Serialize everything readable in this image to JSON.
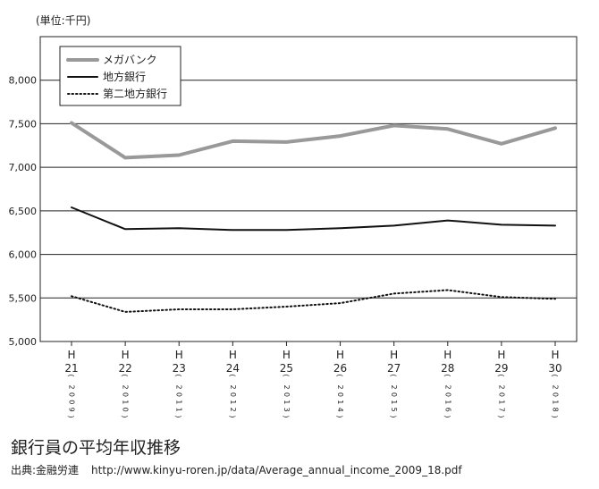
{
  "unit_label": "(単位:千円)",
  "title": "銀行員の平均年収推移",
  "source": {
    "label": "出典:金融労連",
    "url": "http://www.kinyu-roren.jp/data/Average_annual_income_2009_18.pdf"
  },
  "colors": {
    "megabank": "#999999",
    "regional": "#111111",
    "second_regional": "#111111",
    "grid": "#222222"
  },
  "chart_data": {
    "type": "line",
    "categories": [
      {
        "era": "H",
        "era_year": "21",
        "year": "2009"
      },
      {
        "era": "H",
        "era_year": "22",
        "year": "2010"
      },
      {
        "era": "H",
        "era_year": "23",
        "year": "2011"
      },
      {
        "era": "H",
        "era_year": "24",
        "year": "2012"
      },
      {
        "era": "H",
        "era_year": "25",
        "year": "2013"
      },
      {
        "era": "H",
        "era_year": "26",
        "year": "2014"
      },
      {
        "era": "H",
        "era_year": "27",
        "year": "2015"
      },
      {
        "era": "H",
        "era_year": "28",
        "year": "2016"
      },
      {
        "era": "H",
        "era_year": "29",
        "year": "2017"
      },
      {
        "era": "H",
        "era_year": "30",
        "year": "2018"
      }
    ],
    "series": [
      {
        "name": "メガバンク",
        "style": "solid-thick",
        "color": "#999999",
        "values": [
          7510,
          7110,
          7140,
          7300,
          7290,
          7360,
          7480,
          7440,
          7270,
          7450
        ]
      },
      {
        "name": "地方銀行",
        "style": "solid",
        "color": "#111111",
        "values": [
          6540,
          6290,
          6300,
          6280,
          6280,
          6300,
          6330,
          6390,
          6340,
          6330
        ]
      },
      {
        "name": "第二地方銀行",
        "style": "dotted",
        "color": "#111111",
        "values": [
          5520,
          5340,
          5370,
          5370,
          5400,
          5440,
          5550,
          5590,
          5510,
          5490
        ]
      }
    ],
    "y_ticks": [
      "5,000",
      "5,500",
      "6,000",
      "6,500",
      "7,000",
      "7,500",
      "8,000"
    ],
    "ylim": [
      5000,
      8500
    ],
    "grid": true,
    "legend_position": "top-left"
  }
}
